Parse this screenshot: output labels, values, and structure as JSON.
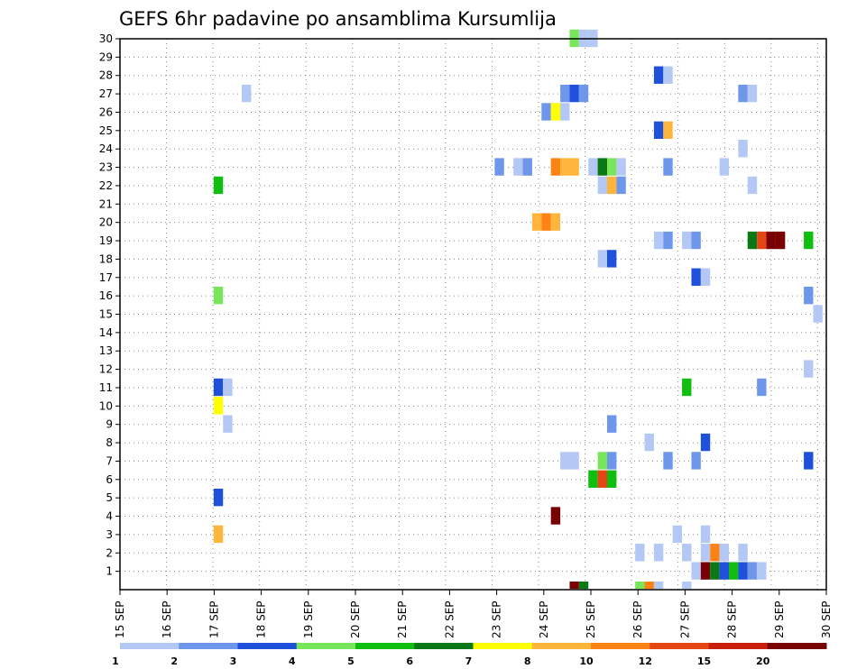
{
  "chart_data": {
    "type": "heatmap",
    "title": "GEFS 6hr padavine po ansamblima Kursumlija",
    "xlabel": "",
    "ylabel": "",
    "x_ticks": [
      "15 SEP",
      "16 SEP",
      "17 SEP",
      "18 SEP",
      "19 SEP",
      "20 SEP",
      "21 SEP",
      "22 SEP",
      "23 SEP",
      "24 SEP",
      "25 SEP",
      "26 SEP",
      "27 SEP",
      "28 SEP",
      "29 SEP",
      "30 SEP"
    ],
    "x_range": [
      "15 SEP 00Z",
      "30 SEP 00Z"
    ],
    "x_step": "6hr",
    "y_ticks": [
      1,
      2,
      3,
      4,
      5,
      6,
      7,
      8,
      9,
      10,
      11,
      12,
      13,
      14,
      15,
      16,
      17,
      18,
      19,
      20,
      21,
      22,
      23,
      24,
      25,
      26,
      27,
      28,
      29,
      30
    ],
    "y_range": [
      0,
      30
    ],
    "grid": true,
    "colorbar": {
      "labels": [
        "1",
        "2",
        "3",
        "4",
        "5",
        "6",
        "7",
        "8",
        "10",
        "12",
        "15",
        "20"
      ],
      "colors": [
        "#b4c8f5",
        "#6e96eb",
        "#1e50dc",
        "#78e65a",
        "#10be10",
        "#0a7814",
        "#ffff00",
        "#ffb43c",
        "#ff8214",
        "#e64614",
        "#c81e0a",
        "#780000"
      ]
    },
    "cell_value_note": "value = colorbar class index (0..11)",
    "cells": [
      {
        "m": 30,
        "t": 48,
        "v": 3
      },
      {
        "m": 30,
        "t": 49,
        "v": 0
      },
      {
        "m": 30,
        "t": 50,
        "v": 0
      },
      {
        "m": 28,
        "t": 57,
        "v": 2
      },
      {
        "m": 28,
        "t": 58,
        "v": 0
      },
      {
        "m": 27,
        "t": 13,
        "v": 0
      },
      {
        "m": 27,
        "t": 47,
        "v": 1
      },
      {
        "m": 27,
        "t": 48,
        "v": 2
      },
      {
        "m": 27,
        "t": 49,
        "v": 1
      },
      {
        "m": 27,
        "t": 66,
        "v": 1
      },
      {
        "m": 27,
        "t": 67,
        "v": 0
      },
      {
        "m": 26,
        "t": 45,
        "v": 1
      },
      {
        "m": 26,
        "t": 46,
        "v": 6
      },
      {
        "m": 26,
        "t": 47,
        "v": 0
      },
      {
        "m": 25,
        "t": 57,
        "v": 2
      },
      {
        "m": 25,
        "t": 58,
        "v": 7
      },
      {
        "m": 24,
        "t": 66,
        "v": 0
      },
      {
        "m": 23,
        "t": 40,
        "v": 1
      },
      {
        "m": 23,
        "t": 42,
        "v": 0
      },
      {
        "m": 23,
        "t": 43,
        "v": 1
      },
      {
        "m": 23,
        "t": 46,
        "v": 8
      },
      {
        "m": 23,
        "t": 47,
        "v": 7
      },
      {
        "m": 23,
        "t": 48,
        "v": 7
      },
      {
        "m": 23,
        "t": 50,
        "v": 0
      },
      {
        "m": 23,
        "t": 51,
        "v": 5
      },
      {
        "m": 23,
        "t": 52,
        "v": 3
      },
      {
        "m": 23,
        "t": 53,
        "v": 0
      },
      {
        "m": 23,
        "t": 58,
        "v": 1
      },
      {
        "m": 23,
        "t": 64,
        "v": 0
      },
      {
        "m": 22,
        "t": 10,
        "v": 4
      },
      {
        "m": 22,
        "t": 51,
        "v": 0
      },
      {
        "m": 22,
        "t": 52,
        "v": 7
      },
      {
        "m": 22,
        "t": 53,
        "v": 1
      },
      {
        "m": 22,
        "t": 67,
        "v": 0
      },
      {
        "m": 20,
        "t": 44,
        "v": 7
      },
      {
        "m": 20,
        "t": 45,
        "v": 8
      },
      {
        "m": 20,
        "t": 46,
        "v": 7
      },
      {
        "m": 19,
        "t": 57,
        "v": 0
      },
      {
        "m": 19,
        "t": 58,
        "v": 1
      },
      {
        "m": 19,
        "t": 60,
        "v": 0
      },
      {
        "m": 19,
        "t": 61,
        "v": 1
      },
      {
        "m": 19,
        "t": 67,
        "v": 5
      },
      {
        "m": 19,
        "t": 68,
        "v": 9
      },
      {
        "m": 19,
        "t": 69,
        "v": 11
      },
      {
        "m": 19,
        "t": 70,
        "v": 11
      },
      {
        "m": 19,
        "t": 73,
        "v": 4
      },
      {
        "m": 18,
        "t": 51,
        "v": 0
      },
      {
        "m": 18,
        "t": 52,
        "v": 2
      },
      {
        "m": 17,
        "t": 61,
        "v": 2
      },
      {
        "m": 17,
        "t": 62,
        "v": 0
      },
      {
        "m": 16,
        "t": 10,
        "v": 3
      },
      {
        "m": 16,
        "t": 73,
        "v": 1
      },
      {
        "m": 15,
        "t": 74,
        "v": 0
      },
      {
        "m": 12,
        "t": 73,
        "v": 0
      },
      {
        "m": 11,
        "t": 10,
        "v": 2
      },
      {
        "m": 11,
        "t": 11,
        "v": 0
      },
      {
        "m": 11,
        "t": 60,
        "v": 4
      },
      {
        "m": 11,
        "t": 68,
        "v": 1
      },
      {
        "m": 10,
        "t": 10,
        "v": 6
      },
      {
        "m": 9,
        "t": 11,
        "v": 0
      },
      {
        "m": 9,
        "t": 52,
        "v": 1
      },
      {
        "m": 8,
        "t": 56,
        "v": 0
      },
      {
        "m": 8,
        "t": 62,
        "v": 2
      },
      {
        "m": 7,
        "t": 47,
        "v": 0
      },
      {
        "m": 7,
        "t": 48,
        "v": 0
      },
      {
        "m": 7,
        "t": 51,
        "v": 3
      },
      {
        "m": 7,
        "t": 52,
        "v": 1
      },
      {
        "m": 7,
        "t": 58,
        "v": 1
      },
      {
        "m": 7,
        "t": 61,
        "v": 1
      },
      {
        "m": 7,
        "t": 73,
        "v": 2
      },
      {
        "m": 6,
        "t": 50,
        "v": 4
      },
      {
        "m": 6,
        "t": 51,
        "v": 9
      },
      {
        "m": 6,
        "t": 52,
        "v": 4
      },
      {
        "m": 5,
        "t": 10,
        "v": 2
      },
      {
        "m": 4,
        "t": 46,
        "v": 11
      },
      {
        "m": 3,
        "t": 10,
        "v": 7
      },
      {
        "m": 3,
        "t": 59,
        "v": 0
      },
      {
        "m": 3,
        "t": 62,
        "v": 0
      },
      {
        "m": 2,
        "t": 55,
        "v": 0
      },
      {
        "m": 2,
        "t": 57,
        "v": 0
      },
      {
        "m": 2,
        "t": 60,
        "v": 0
      },
      {
        "m": 2,
        "t": 62,
        "v": 0
      },
      {
        "m": 2,
        "t": 63,
        "v": 8
      },
      {
        "m": 2,
        "t": 64,
        "v": 0
      },
      {
        "m": 2,
        "t": 66,
        "v": 0
      },
      {
        "m": 1,
        "t": 61,
        "v": 0
      },
      {
        "m": 1,
        "t": 62,
        "v": 11
      },
      {
        "m": 1,
        "t": 63,
        "v": 5
      },
      {
        "m": 1,
        "t": 64,
        "v": 2
      },
      {
        "m": 1,
        "t": 65,
        "v": 4
      },
      {
        "m": 1,
        "t": 66,
        "v": 2
      },
      {
        "m": 1,
        "t": 67,
        "v": 1
      },
      {
        "m": 1,
        "t": 68,
        "v": 0
      },
      {
        "m": 0,
        "t": 48,
        "v": 11
      },
      {
        "m": 0,
        "t": 49,
        "v": 5
      },
      {
        "m": 0,
        "t": 55,
        "v": 3
      },
      {
        "m": 0,
        "t": 56,
        "v": 8
      },
      {
        "m": 0,
        "t": 57,
        "v": 0
      },
      {
        "m": 0,
        "t": 60,
        "v": 0
      }
    ]
  }
}
